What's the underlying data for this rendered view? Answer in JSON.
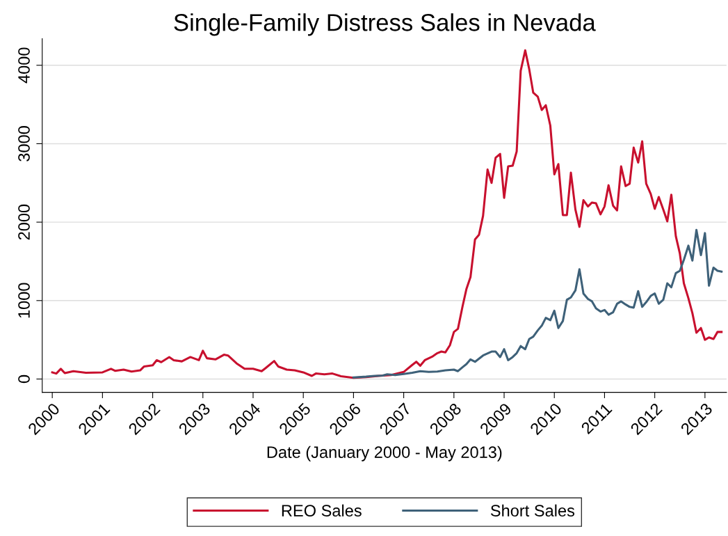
{
  "chart_data": {
    "type": "line",
    "title": "Single-Family Distress Sales in Nevada",
    "xlabel": "Date (January 2000 - May 2013)",
    "xlim": [
      1999.8,
      2013.43
    ],
    "xticks": [
      2000,
      2001,
      2002,
      2003,
      2004,
      2005,
      2006,
      2007,
      2008,
      2009,
      2010,
      2011,
      2012,
      2013
    ],
    "ylim": [
      -170,
      4340
    ],
    "yticks": [
      0,
      1000,
      2000,
      3000,
      4000
    ],
    "grid": "y",
    "legend": "bottom",
    "marker": "none",
    "line_style": "solid",
    "series": [
      {
        "name": "REO Sales",
        "color": "#c8102e",
        "x": [
          2000.0,
          2000.08,
          2000.17,
          2000.25,
          2000.42,
          2000.67,
          2001.0,
          2001.17,
          2001.25,
          2001.42,
          2001.58,
          2001.75,
          2001.83,
          2002.0,
          2002.08,
          2002.17,
          2002.33,
          2002.42,
          2002.58,
          2002.75,
          2002.92,
          2003.0,
          2003.08,
          2003.25,
          2003.42,
          2003.5,
          2003.67,
          2003.83,
          2004.0,
          2004.17,
          2004.25,
          2004.42,
          2004.5,
          2004.67,
          2004.83,
          2005.0,
          2005.17,
          2005.25,
          2005.42,
          2005.58,
          2005.75,
          2006.0,
          2006.25,
          2006.5,
          2006.75,
          2007.0,
          2007.17,
          2007.25,
          2007.33,
          2007.42,
          2007.58,
          2007.67,
          2007.75,
          2007.83,
          2007.92,
          2008.0,
          2008.08,
          2008.17,
          2008.25,
          2008.33,
          2008.42,
          2008.5,
          2008.58,
          2008.67,
          2008.75,
          2008.83,
          2008.92,
          2009.0,
          2009.08,
          2009.17,
          2009.25,
          2009.33,
          2009.42,
          2009.5,
          2009.58,
          2009.67,
          2009.75,
          2009.83,
          2009.92,
          2010.0,
          2010.08,
          2010.17,
          2010.25,
          2010.33,
          2010.42,
          2010.5,
          2010.58,
          2010.67,
          2010.75,
          2010.83,
          2010.92,
          2011.0,
          2011.08,
          2011.17,
          2011.25,
          2011.33,
          2011.42,
          2011.5,
          2011.58,
          2011.67,
          2011.75,
          2011.83,
          2011.92,
          2012.0,
          2012.08,
          2012.17,
          2012.25,
          2012.33,
          2012.42,
          2012.5,
          2012.58,
          2012.67,
          2012.75,
          2012.83,
          2012.92,
          2013.0,
          2013.08,
          2013.17,
          2013.25,
          2013.33
        ],
        "values": [
          85,
          70,
          130,
          75,
          100,
          80,
          85,
          130,
          105,
          120,
          95,
          110,
          160,
          175,
          240,
          215,
          280,
          240,
          225,
          280,
          240,
          360,
          265,
          250,
          310,
          300,
          200,
          130,
          130,
          100,
          140,
          230,
          160,
          120,
          110,
          85,
          40,
          70,
          60,
          70,
          35,
          15,
          25,
          40,
          50,
          90,
          180,
          220,
          170,
          240,
          290,
          330,
          350,
          340,
          430,
          600,
          640,
          920,
          1150,
          1300,
          1780,
          1840,
          2080,
          2670,
          2500,
          2820,
          2870,
          2310,
          2710,
          2720,
          2900,
          3930,
          4190,
          3950,
          3650,
          3600,
          3430,
          3490,
          3230,
          2610,
          2740,
          2090,
          2090,
          2630,
          2160,
          1940,
          2280,
          2200,
          2250,
          2240,
          2100,
          2200,
          2470,
          2210,
          2150,
          2710,
          2460,
          2490,
          2950,
          2760,
          3030,
          2490,
          2360,
          2170,
          2320,
          2160,
          2010,
          2350,
          1820,
          1600,
          1220,
          1030,
          840,
          590,
          650,
          500,
          530,
          510,
          600,
          600
        ]
      },
      {
        "name": "Short Sales",
        "color": "#3e6179",
        "x": [
          2006.0,
          2006.25,
          2006.42,
          2006.58,
          2006.67,
          2006.83,
          2007.0,
          2007.17,
          2007.33,
          2007.5,
          2007.67,
          2007.83,
          2008.0,
          2008.08,
          2008.17,
          2008.25,
          2008.33,
          2008.42,
          2008.58,
          2008.75,
          2008.83,
          2008.92,
          2009.0,
          2009.08,
          2009.17,
          2009.25,
          2009.33,
          2009.42,
          2009.5,
          2009.58,
          2009.67,
          2009.75,
          2009.83,
          2009.92,
          2010.0,
          2010.08,
          2010.17,
          2010.25,
          2010.33,
          2010.42,
          2010.5,
          2010.58,
          2010.67,
          2010.75,
          2010.83,
          2010.92,
          2011.0,
          2011.08,
          2011.17,
          2011.25,
          2011.33,
          2011.42,
          2011.5,
          2011.58,
          2011.67,
          2011.75,
          2011.83,
          2011.92,
          2012.0,
          2012.08,
          2012.17,
          2012.25,
          2012.33,
          2012.42,
          2012.5,
          2012.58,
          2012.67,
          2012.75,
          2012.83,
          2012.92,
          2013.0,
          2013.08,
          2013.17,
          2013.25,
          2013.33
        ],
        "values": [
          20,
          30,
          40,
          45,
          60,
          50,
          65,
          80,
          100,
          90,
          95,
          110,
          120,
          100,
          150,
          190,
          250,
          220,
          300,
          350,
          350,
          280,
          380,
          240,
          280,
          330,
          420,
          380,
          510,
          540,
          620,
          680,
          780,
          750,
          870,
          650,
          740,
          1010,
          1040,
          1130,
          1400,
          1090,
          1020,
          990,
          900,
          860,
          880,
          820,
          850,
          960,
          990,
          950,
          920,
          910,
          1120,
          920,
          980,
          1060,
          1090,
          960,
          1010,
          1220,
          1170,
          1350,
          1380,
          1520,
          1700,
          1510,
          1900,
          1580,
          1860,
          1190,
          1420,
          1380,
          1370
        ]
      }
    ]
  }
}
